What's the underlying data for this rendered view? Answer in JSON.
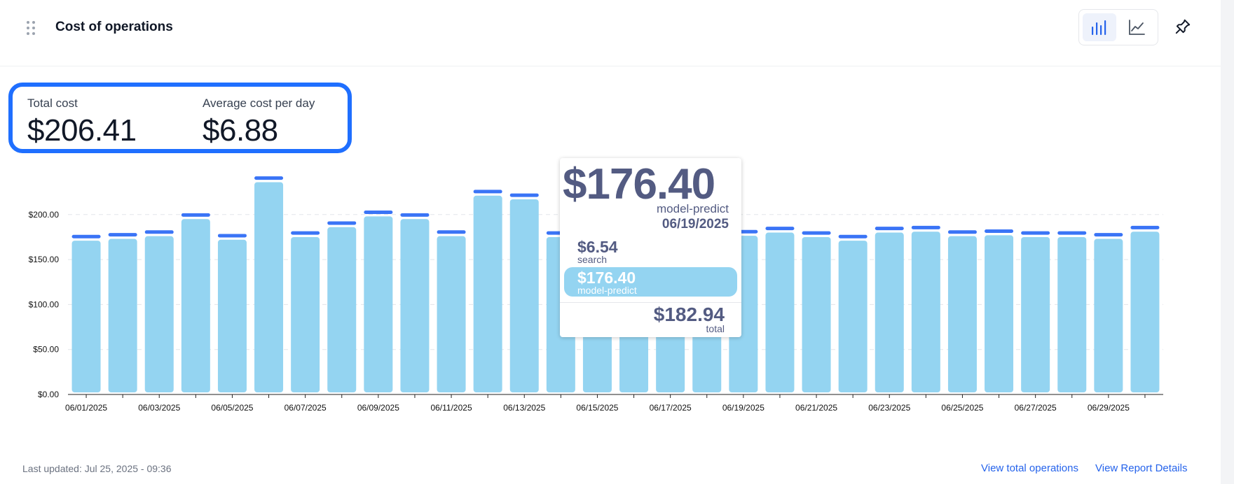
{
  "header": {
    "title": "Cost of operations",
    "icons": {
      "drag": "drag-handle-icon",
      "bar_chart": "bar-chart-icon",
      "line_chart": "line-chart-icon",
      "pin": "pin-icon"
    },
    "active_view": "bar"
  },
  "summary": {
    "total_label": "Total cost",
    "total_value": "$206.41",
    "avg_label": "Average cost per day",
    "avg_value": "$6.88"
  },
  "chart_data": {
    "type": "bar",
    "stacked": true,
    "categories": [
      "06/01/2025",
      "06/02/2025",
      "06/03/2025",
      "06/04/2025",
      "06/05/2025",
      "06/06/2025",
      "06/07/2025",
      "06/08/2025",
      "06/09/2025",
      "06/10/2025",
      "06/11/2025",
      "06/12/2025",
      "06/13/2025",
      "06/14/2025",
      "06/15/2025",
      "06/16/2025",
      "06/17/2025",
      "06/18/2025",
      "06/19/2025",
      "06/20/2025",
      "06/21/2025",
      "06/22/2025",
      "06/23/2025",
      "06/24/2025",
      "06/25/2025",
      "06/26/2025",
      "06/27/2025",
      "06/28/2025",
      "06/29/2025",
      "06/30/2025"
    ],
    "x_tick_labels": [
      "06/01/2025",
      "06/03/2025",
      "06/05/2025",
      "06/07/2025",
      "06/09/2025",
      "06/11/2025",
      "06/13/2025",
      "06/15/2025",
      "06/17/2025",
      "06/19/2025",
      "06/21/2025",
      "06/23/2025",
      "06/25/2025",
      "06/27/2025",
      "06/29/2025"
    ],
    "y_ticks": [
      0,
      50,
      100,
      150,
      200
    ],
    "y_tick_labels": [
      "$0.00",
      "$50.00",
      "$100.00",
      "$150.00",
      "$200.00"
    ],
    "ylim": [
      0,
      240
    ],
    "grid": "horizontal dashed",
    "series": [
      {
        "name": "model-predict",
        "color": "#94d4f1",
        "values": [
          171,
          173,
          176,
          195,
          172,
          236,
          175,
          186,
          198,
          195,
          176,
          221,
          217,
          175,
          175,
          175,
          175,
          175,
          176.4,
          180,
          175,
          171,
          180,
          181,
          176,
          177,
          175,
          175,
          173,
          181
        ]
      },
      {
        "name": "search",
        "color": "#3a74f6",
        "values": [
          6.5,
          6.5,
          6.5,
          6.5,
          6.5,
          6.5,
          6.5,
          6.5,
          6.5,
          6.5,
          6.5,
          6.5,
          6.5,
          6.5,
          6.5,
          6.5,
          6.5,
          6.5,
          6.54,
          6.5,
          6.5,
          6.5,
          6.5,
          6.5,
          6.5,
          6.5,
          6.5,
          6.5,
          6.5,
          6.5
        ]
      }
    ]
  },
  "tooltip": {
    "headline_value": "$176.40",
    "headline_series": "model-predict",
    "date": "06/19/2025",
    "rows": [
      {
        "value": "$6.54",
        "name": "search"
      },
      {
        "value": "$176.40",
        "name": "model-predict"
      }
    ],
    "total_value": "$182.94",
    "total_label": "total"
  },
  "footer": {
    "last_updated": "Last updated: Jul 25, 2025 - 09:36",
    "link_total_ops": "View total operations",
    "link_report": "View Report Details"
  }
}
